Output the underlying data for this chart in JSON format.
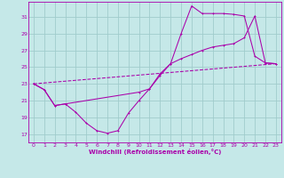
{
  "xlabel": "Windchill (Refroidissement éolien,°C)",
  "xlim": [
    -0.5,
    23.5
  ],
  "ylim": [
    16.0,
    32.8
  ],
  "xticks": [
    0,
    1,
    2,
    3,
    4,
    5,
    6,
    7,
    8,
    9,
    10,
    11,
    12,
    13,
    14,
    15,
    16,
    17,
    18,
    19,
    20,
    21,
    22,
    23
  ],
  "yticks": [
    17,
    19,
    21,
    23,
    25,
    27,
    29,
    31
  ],
  "bg_color": "#c5e8e8",
  "grid_color": "#a0cccc",
  "line_color": "#aa00aa",
  "line1_x": [
    0,
    1,
    2,
    3,
    4,
    5,
    6,
    7,
    8,
    9,
    10,
    11,
    12,
    13,
    14,
    15,
    16,
    17,
    18,
    19,
    20,
    21,
    22,
    23
  ],
  "line1_y": [
    23.0,
    22.3,
    20.4,
    20.6,
    19.6,
    18.3,
    17.4,
    17.1,
    17.4,
    19.5,
    21.0,
    22.4,
    24.2,
    25.4,
    29.0,
    32.3,
    31.4,
    31.4,
    31.4,
    31.3,
    31.1,
    26.3,
    25.5,
    25.4
  ],
  "line2_x": [
    0,
    1,
    2,
    3,
    10,
    11,
    12,
    13,
    14,
    15,
    16,
    17,
    18,
    19,
    20,
    21,
    22,
    23
  ],
  "line2_y": [
    23.0,
    22.3,
    20.4,
    20.6,
    22.0,
    22.4,
    24.0,
    25.4,
    26.0,
    26.5,
    27.0,
    27.4,
    27.6,
    27.8,
    28.5,
    31.1,
    25.5,
    25.4
  ],
  "line3_x": [
    0,
    23
  ],
  "line3_y": [
    23.0,
    25.4
  ]
}
